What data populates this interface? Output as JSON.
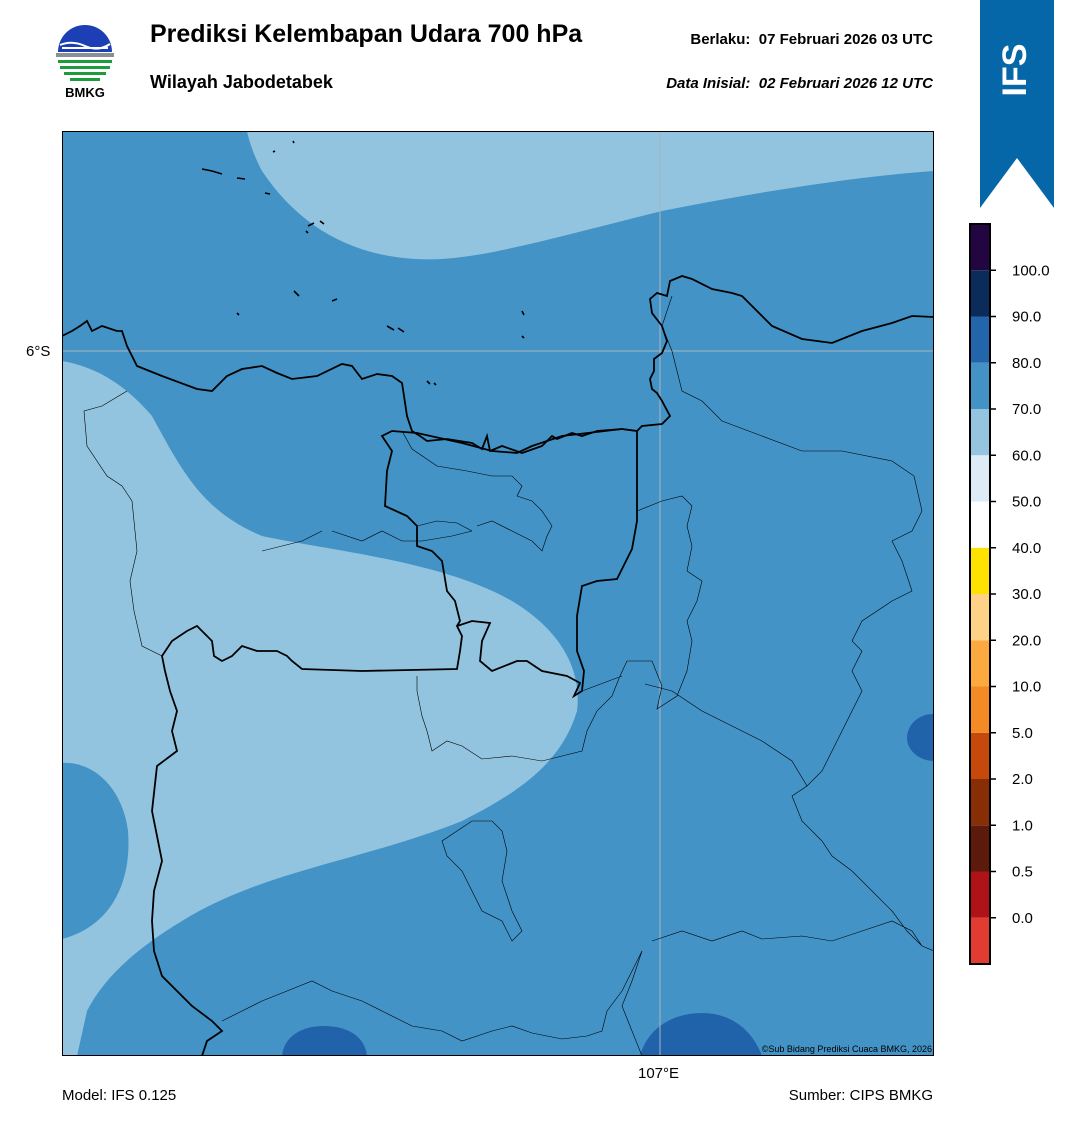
{
  "header": {
    "title": "Prediksi Kelembapan Udara 700 hPa",
    "subtitle": "Wilayah Jabodetabek",
    "valid_label": "Berlaku:",
    "valid_time": "07 Februari 2026 03 UTC",
    "init_label": "Data Inisial:",
    "init_time": "02 Februari 2026 12 UTC"
  },
  "logo": {
    "text": "BMKG",
    "icon": "bmkg-logo-icon"
  },
  "badge": {
    "text": "IFS",
    "color": "#0667a8"
  },
  "map": {
    "lat_label": "6°S",
    "lon_label": "107°E",
    "copyright": "©Sub Bidang Prediksi Cuaca BMKG, 2026",
    "colors": {
      "band_60_70": "#92c4df",
      "band_70_80": "#4393c6",
      "band_80_90": "#2163ab",
      "gridline": "#a8b4bd",
      "boundary": "#000000"
    }
  },
  "colorbar": {
    "labels": [
      "0.0",
      "0.5",
      "1.0",
      "2.0",
      "5.0",
      "10.0",
      "20.0",
      "30.0",
      "40.0",
      "50.0",
      "60.0",
      "70.0",
      "80.0",
      "90.0",
      "100.0"
    ],
    "colors_bottom_to_top": [
      "#e03c31",
      "#b01317",
      "#5b1a0b",
      "#872e07",
      "#c5490a",
      "#f28a25",
      "#fca93f",
      "#fdd287",
      "#ffe200",
      "#ffffff",
      "#ddebf6",
      "#94c4df",
      "#4292c6",
      "#2365ab",
      "#0b2b5a",
      "#230541"
    ]
  },
  "footer": {
    "model": "Model: IFS 0.125",
    "source": "Sumber: CIPS BMKG"
  }
}
